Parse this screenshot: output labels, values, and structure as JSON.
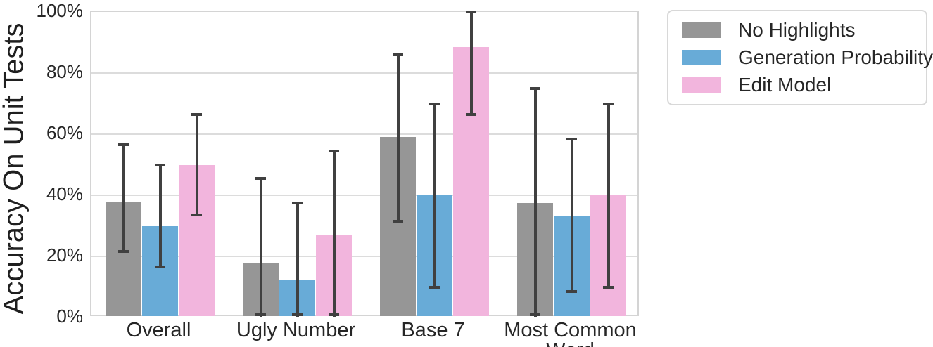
{
  "chart_data": {
    "type": "bar",
    "title": "",
    "ylabel": "Accuracy On Unit Tests",
    "xlabel": "",
    "ylim": [
      0,
      100
    ],
    "yticks": [
      {
        "value": 0,
        "label": "0%"
      },
      {
        "value": 20,
        "label": "20%"
      },
      {
        "value": 40,
        "label": "40%"
      },
      {
        "value": 60,
        "label": "60%"
      },
      {
        "value": 80,
        "label": "80%"
      },
      {
        "value": 100,
        "label": "100%"
      }
    ],
    "grid": "horizontal",
    "legend_position": "outside-upper-right",
    "categories": [
      "Overall",
      "Ugly Number",
      "Base 7",
      "Most Common Word"
    ],
    "series": [
      {
        "name": "No Highlights",
        "color": "#969696",
        "values": [
          38,
          18,
          59,
          37.5
        ],
        "error_low": [
          21.5,
          0,
          31.5,
          0
        ],
        "error_high": [
          56.5,
          45.5,
          86,
          75
        ]
      },
      {
        "name": "Generation Probability",
        "color": "#68abd7",
        "values": [
          30,
          12.5,
          40,
          33.3
        ],
        "error_low": [
          16.5,
          0,
          10,
          8.5
        ],
        "error_high": [
          50,
          37.5,
          70,
          58.5
        ]
      },
      {
        "name": "Edit Model",
        "color": "#f2b5dd",
        "values": [
          50,
          27,
          88.5,
          40
        ],
        "error_low": [
          33.5,
          0,
          66.5,
          10
        ],
        "error_high": [
          66.5,
          54.5,
          100,
          70
        ]
      }
    ],
    "error_bar_color": "#404040"
  }
}
